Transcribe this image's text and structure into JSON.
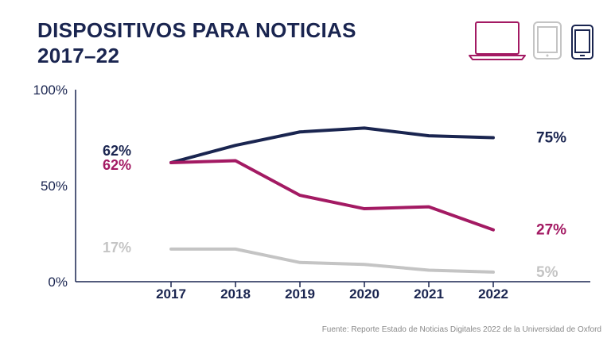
{
  "title_line1": "DISPOSITIVOS PARA NOTICIAS",
  "title_line2": "2017–22",
  "source": "Fuente: Reporte Estado de Noticias Digitales 2022 de la Universidad de Oxford",
  "icons": [
    "laptop-icon",
    "tablet-icon",
    "smartphone-icon"
  ],
  "colors": {
    "navy": "#1a2550",
    "magenta": "#a31a63",
    "gray": "#c4c4c4",
    "axis": "#1a2550"
  },
  "chart_data": {
    "type": "line",
    "x": [
      "2017",
      "2018",
      "2019",
      "2020",
      "2021",
      "2022"
    ],
    "ylim": [
      0,
      100
    ],
    "yticks": [
      "0%",
      "50%",
      "100%"
    ],
    "series": [
      {
        "color": "#1a2550",
        "values": [
          62,
          71,
          78,
          80,
          76,
          75
        ],
        "start_label": "62%",
        "end_label": "75%"
      },
      {
        "color": "#a31a63",
        "values": [
          62,
          63,
          45,
          38,
          39,
          27
        ],
        "start_label": "62%",
        "end_label": "27%"
      },
      {
        "color": "#c4c4c4",
        "values": [
          17,
          17,
          10,
          9,
          6,
          5
        ],
        "start_label": "17%",
        "end_label": "5%"
      }
    ]
  }
}
